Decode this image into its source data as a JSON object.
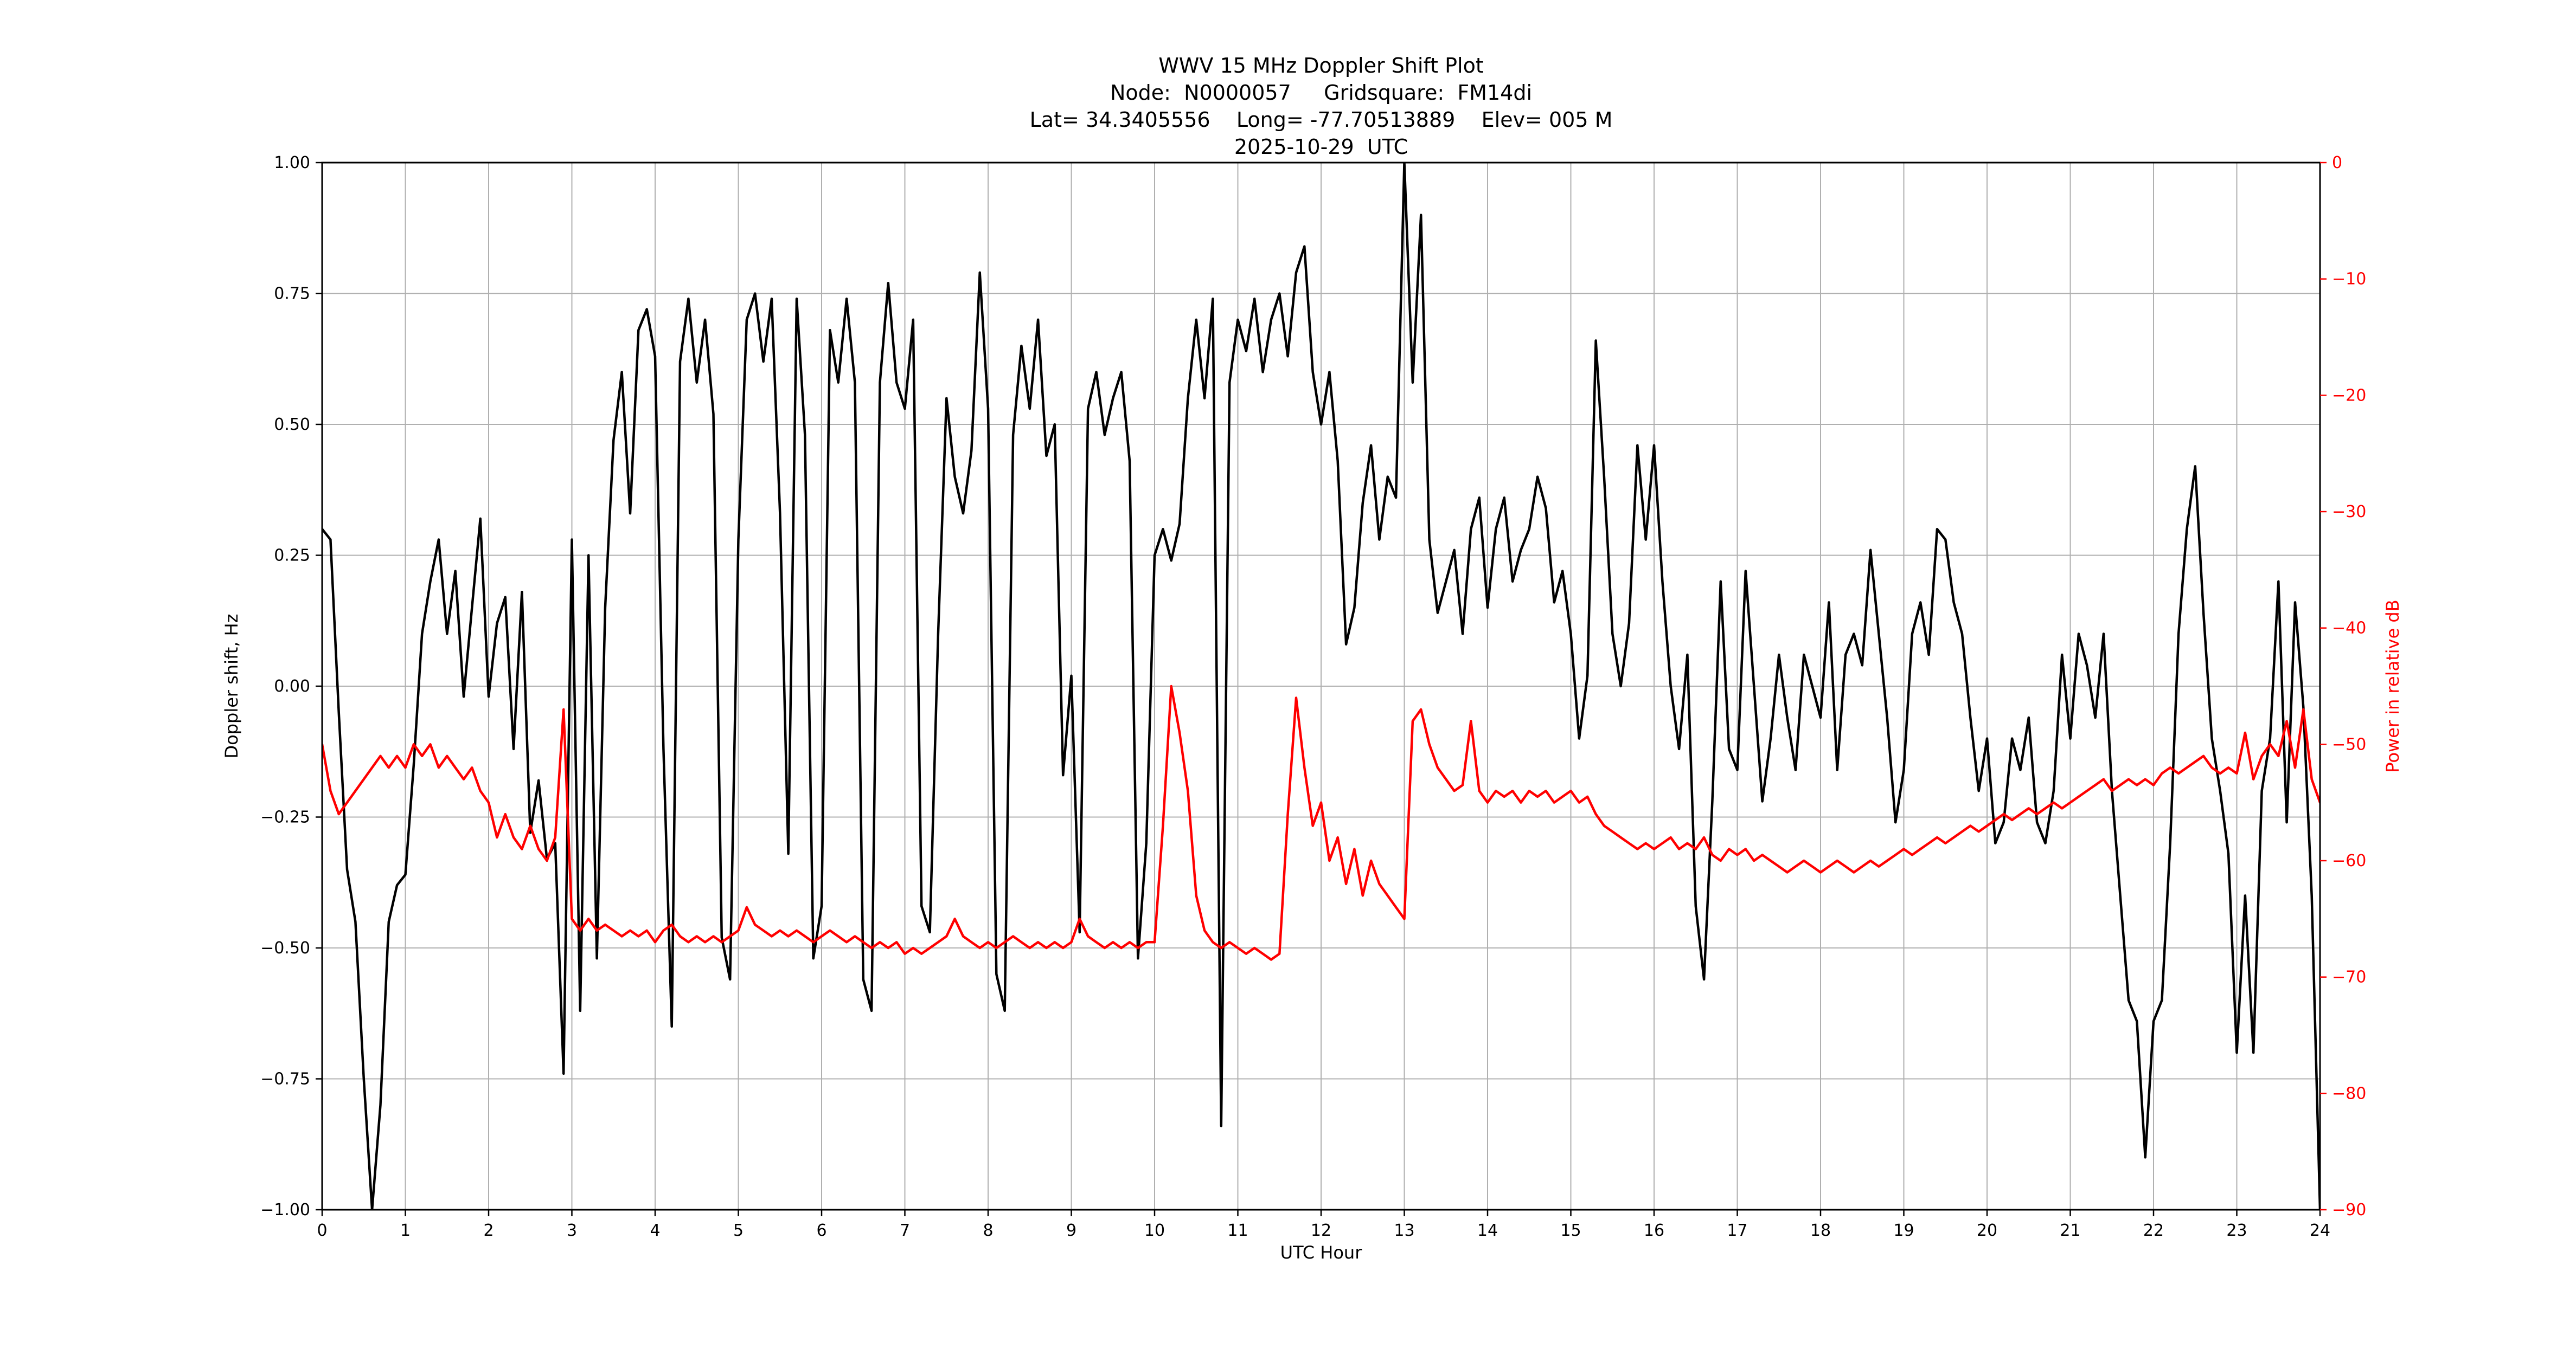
{
  "chart_data": {
    "type": "line",
    "title": "WWV 15 MHz Doppler Shift Plot",
    "subtitle_lines": [
      "Node:  N0000057     Gridsquare:  FM14di",
      "Lat= 34.3405556    Long= -77.70513889    Elev= 005 M",
      "2025-10-29  UTC"
    ],
    "xlabel": "UTC Hour",
    "ylabel_left": "Doppler shift, Hz",
    "ylabel_right": "Power in relative dB",
    "x_range": [
      0,
      24
    ],
    "y_left_range": [
      -1.0,
      1.0
    ],
    "y_right_range": [
      -90,
      0
    ],
    "grid": true,
    "legend": "none",
    "x_ticks": {
      "values": [
        0,
        1,
        2,
        3,
        4,
        5,
        6,
        7,
        8,
        9,
        10,
        11,
        12,
        13,
        14,
        15,
        16,
        17,
        18,
        19,
        20,
        21,
        22,
        23,
        24
      ],
      "labels": [
        "0",
        "1",
        "2",
        "3",
        "4",
        "5",
        "6",
        "7",
        "8",
        "9",
        "10",
        "11",
        "12",
        "13",
        "14",
        "15",
        "16",
        "17",
        "18",
        "19",
        "20",
        "21",
        "22",
        "23",
        "24"
      ]
    },
    "y_left_ticks": {
      "values": [
        1.0,
        0.75,
        0.5,
        0.25,
        0.0,
        -0.25,
        -0.5,
        -0.75,
        -1.0
      ],
      "labels": [
        "1.00",
        "0.75",
        "0.50",
        "0.25",
        "0.00",
        "−0.25",
        "−0.50",
        "−0.75",
        "−1.00"
      ]
    },
    "y_right_ticks": {
      "values": [
        0,
        -10,
        -20,
        -30,
        -40,
        -50,
        -60,
        -70,
        -80,
        -90
      ],
      "labels": [
        "0",
        "−10",
        "−20",
        "−30",
        "−40",
        "−50",
        "−60",
        "−70",
        "−80",
        "−90"
      ]
    },
    "colors": {
      "doppler_series": "#000000",
      "power_series": "#ff0000",
      "grid": "#b0b0b0",
      "axis": "#000000",
      "background": "#ffffff"
    },
    "series": [
      {
        "name": "Doppler shift, Hz",
        "axis": "left",
        "color": "#000000",
        "x_start": 0,
        "x_step": 0.1,
        "values": [
          0.3,
          0.28,
          -0.05,
          -0.35,
          -0.45,
          -0.75,
          -1.0,
          -0.8,
          -0.45,
          -0.38,
          -0.36,
          -0.15,
          0.1,
          0.2,
          0.28,
          0.1,
          0.22,
          -0.02,
          0.15,
          0.32,
          -0.02,
          0.12,
          0.17,
          -0.12,
          0.18,
          -0.28,
          -0.18,
          -0.33,
          -0.3,
          -0.74,
          0.28,
          -0.62,
          0.25,
          -0.52,
          0.15,
          0.47,
          0.6,
          0.33,
          0.68,
          0.72,
          0.63,
          -0.12,
          -0.65,
          0.62,
          0.74,
          0.58,
          0.7,
          0.52,
          -0.48,
          -0.56,
          0.28,
          0.7,
          0.75,
          0.62,
          0.74,
          0.33,
          -0.32,
          0.74,
          0.48,
          -0.52,
          -0.42,
          0.68,
          0.58,
          0.74,
          0.58,
          -0.56,
          -0.62,
          0.58,
          0.77,
          0.58,
          0.53,
          0.7,
          -0.42,
          -0.47,
          0.1,
          0.55,
          0.4,
          0.33,
          0.45,
          0.79,
          0.53,
          -0.55,
          -0.62,
          0.48,
          0.65,
          0.53,
          0.7,
          0.44,
          0.5,
          -0.17,
          0.02,
          -0.47,
          0.53,
          0.6,
          0.48,
          0.55,
          0.6,
          0.43,
          -0.52,
          -0.3,
          0.25,
          0.3,
          0.24,
          0.31,
          0.55,
          0.7,
          0.55,
          0.74,
          -0.84,
          0.58,
          0.7,
          0.64,
          0.74,
          0.6,
          0.7,
          0.75,
          0.63,
          0.79,
          0.84,
          0.6,
          0.5,
          0.6,
          0.43,
          0.08,
          0.15,
          0.35,
          0.46,
          0.28,
          0.4,
          0.36,
          1.0,
          0.58,
          0.9,
          0.28,
          0.14,
          0.2,
          0.26,
          0.1,
          0.3,
          0.36,
          0.15,
          0.3,
          0.36,
          0.2,
          0.26,
          0.3,
          0.4,
          0.34,
          0.16,
          0.22,
          0.1,
          -0.1,
          0.02,
          0.66,
          0.4,
          0.1,
          0.0,
          0.12,
          0.46,
          0.28,
          0.46,
          0.2,
          0.0,
          -0.12,
          0.06,
          -0.42,
          -0.56,
          -0.22,
          0.2,
          -0.12,
          -0.16,
          0.22,
          0.0,
          -0.22,
          -0.1,
          0.06,
          -0.06,
          -0.16,
          0.06,
          0.0,
          -0.06,
          0.16,
          -0.16,
          0.06,
          0.1,
          0.04,
          0.26,
          0.1,
          -0.06,
          -0.26,
          -0.16,
          0.1,
          0.16,
          0.06,
          0.3,
          0.28,
          0.16,
          0.1,
          -0.06,
          -0.2,
          -0.1,
          -0.3,
          -0.26,
          -0.1,
          -0.16,
          -0.06,
          -0.26,
          -0.3,
          -0.2,
          0.06,
          -0.1,
          0.1,
          0.04,
          -0.06,
          0.1,
          -0.2,
          -0.4,
          -0.6,
          -0.64,
          -0.9,
          -0.64,
          -0.6,
          -0.3,
          0.1,
          0.3,
          0.42,
          0.14,
          -0.1,
          -0.2,
          -0.32,
          -0.7,
          -0.4,
          -0.7,
          -0.2,
          -0.1,
          0.2,
          -0.26,
          0.16,
          -0.04,
          -0.4,
          -1.0
        ]
      },
      {
        "name": "Power in relative dB",
        "axis": "right",
        "color": "#ff0000",
        "x_start": 0,
        "x_step": 0.1,
        "values": [
          -50,
          -54,
          -56,
          -55,
          -54,
          -53,
          -52,
          -51,
          -52,
          -51,
          -52,
          -50,
          -51,
          -50,
          -52,
          -51,
          -52,
          -53,
          -52,
          -54,
          -55,
          -58,
          -56,
          -58,
          -59,
          -57,
          -59,
          -60,
          -58,
          -47,
          -65,
          -66,
          -65,
          -66,
          -65.5,
          -66,
          -66.5,
          -66,
          -66.5,
          -66,
          -67,
          -66,
          -65.5,
          -66.5,
          -67,
          -66.5,
          -67,
          -66.5,
          -67,
          -66.5,
          -66,
          -64,
          -65.5,
          -66,
          -66.5,
          -66,
          -66.5,
          -66,
          -66.5,
          -67,
          -66.5,
          -66,
          -66.5,
          -67,
          -66.5,
          -67,
          -67.5,
          -67,
          -67.5,
          -67,
          -68,
          -67.5,
          -68,
          -67.5,
          -67,
          -66.5,
          -65,
          -66.5,
          -67,
          -67.5,
          -67,
          -67.5,
          -67,
          -66.5,
          -67,
          -67.5,
          -67,
          -67.5,
          -67,
          -67.5,
          -67,
          -65,
          -66.5,
          -67,
          -67.5,
          -67,
          -67.5,
          -67,
          -67.5,
          -67,
          -67,
          -57,
          -45,
          -49,
          -54,
          -63,
          -66,
          -67,
          -67.5,
          -67,
          -67.5,
          -68,
          -67.5,
          -68,
          -68.5,
          -68,
          -56,
          -46,
          -52,
          -57,
          -55,
          -60,
          -58,
          -62,
          -59,
          -63,
          -60,
          -62,
          -63,
          -64,
          -65,
          -48,
          -47,
          -50,
          -52,
          -53,
          -54,
          -53.5,
          -48,
          -54,
          -55,
          -54,
          -54.5,
          -54,
          -55,
          -54,
          -54.5,
          -54,
          -55,
          -54.5,
          -54,
          -55,
          -54.5,
          -56,
          -57,
          -57.5,
          -58,
          -58.5,
          -59,
          -58.5,
          -59,
          -58.5,
          -58,
          -59,
          -58.5,
          -59,
          -58,
          -59.5,
          -60,
          -59,
          -59.5,
          -59,
          -60,
          -59.5,
          -60,
          -60.5,
          -61,
          -60.5,
          -60,
          -60.5,
          -61,
          -60.5,
          -60,
          -60.5,
          -61,
          -60.5,
          -60,
          -60.5,
          -60,
          -59.5,
          -59,
          -59.5,
          -59,
          -58.5,
          -58,
          -58.5,
          -58,
          -57.5,
          -57,
          -57.5,
          -57,
          -56.5,
          -56,
          -56.5,
          -56,
          -55.5,
          -56,
          -55.5,
          -55,
          -55.5,
          -55,
          -54.5,
          -54,
          -53.5,
          -53,
          -54,
          -53.5,
          -53,
          -53.5,
          -53,
          -53.5,
          -52.5,
          -52,
          -52.5,
          -52,
          -51.5,
          -51,
          -52,
          -52.5,
          -52,
          -52.5,
          -49,
          -53,
          -51,
          -50,
          -51,
          -48,
          -52,
          -47,
          -53,
          -55
        ]
      }
    ]
  }
}
